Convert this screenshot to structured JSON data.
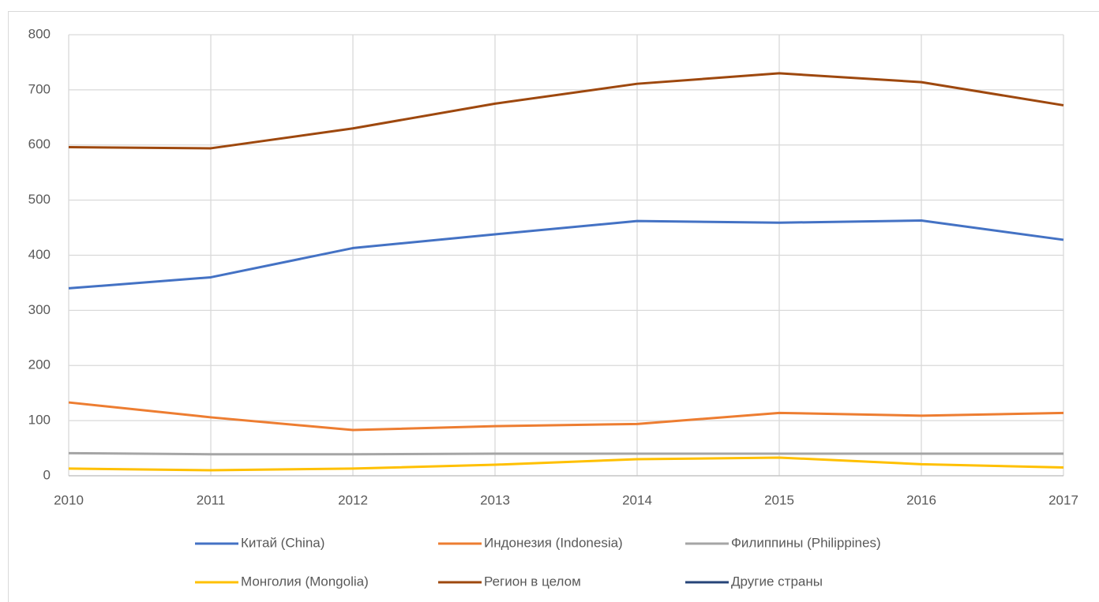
{
  "chart_data": {
    "type": "line",
    "x": [
      2010,
      2011,
      2012,
      2013,
      2014,
      2015,
      2016,
      2017
    ],
    "xlim": [
      2010,
      2017
    ],
    "xticks": [
      2010,
      2011,
      2012,
      2013,
      2014,
      2015,
      2016,
      2017
    ],
    "ylim": [
      0,
      800
    ],
    "yticks": [
      0,
      100,
      200,
      300,
      400,
      500,
      600,
      700,
      800
    ],
    "grid": true,
    "legend": "bottom",
    "series": [
      {
        "name": "Китай (China)",
        "color": "#4472c4",
        "values": [
          340,
          360,
          413,
          438,
          462,
          459,
          463,
          428
        ]
      },
      {
        "name": "Индонезия (Indonesia)",
        "color": "#ed7d31",
        "values": [
          133,
          106,
          83,
          90,
          94,
          114,
          109,
          114
        ]
      },
      {
        "name": "Филиппины (Philippines)",
        "color": "#a5a5a5",
        "values": [
          41,
          39,
          39,
          40,
          40,
          40,
          40,
          40
        ]
      },
      {
        "name": "Монголия (Mongolia)",
        "color": "#ffc000",
        "values": [
          13,
          10,
          13,
          20,
          30,
          33,
          21,
          15
        ]
      },
      {
        "name": "Регион в целом",
        "color": "#9e480e",
        "values": [
          596,
          594,
          630,
          675,
          711,
          730,
          714,
          672
        ]
      },
      {
        "name": "Другие страны",
        "color": "#264478",
        "values": [
          null,
          null,
          null,
          null,
          null,
          null,
          null,
          null
        ]
      }
    ]
  }
}
